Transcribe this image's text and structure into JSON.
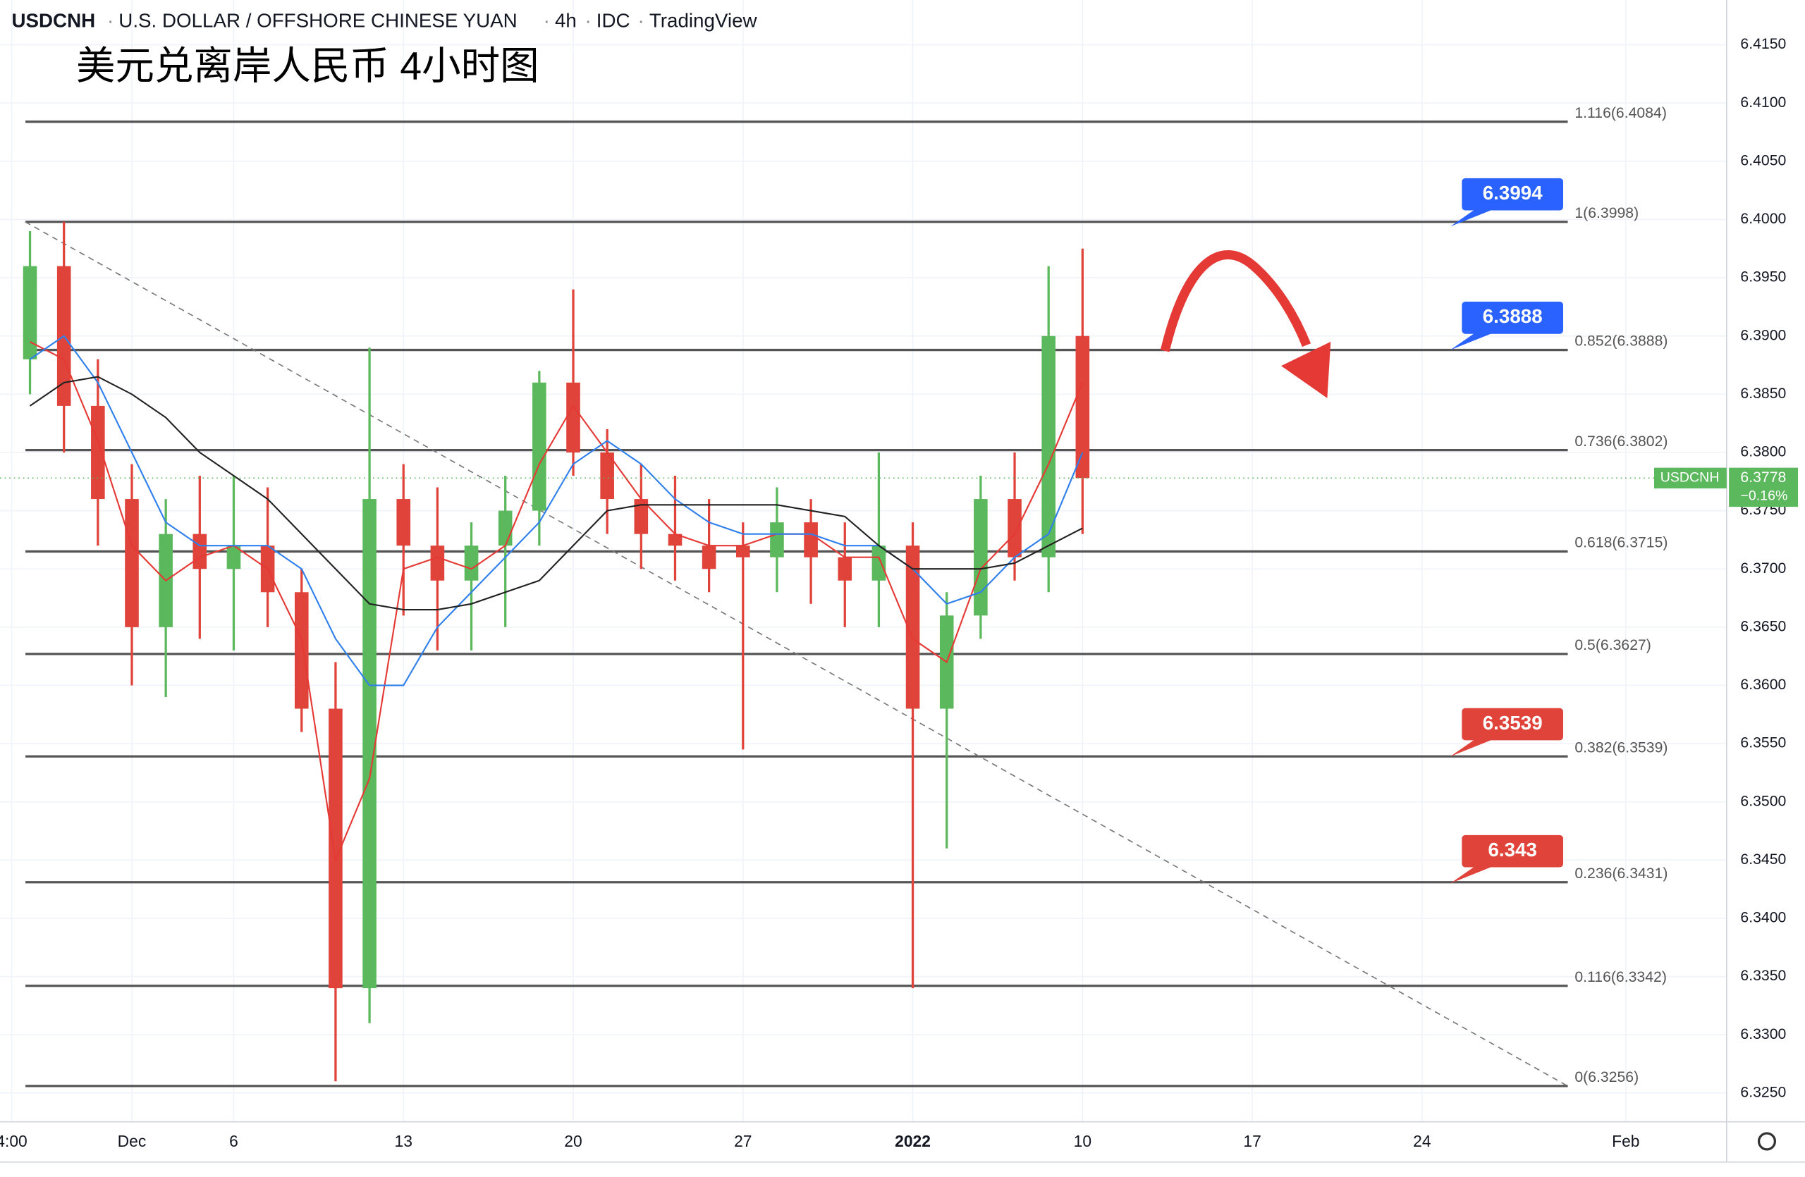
{
  "header": {
    "symbol": "USDCNH",
    "name": "U.S. DOLLAR / OFFSHORE CHINESE YUAN",
    "interval": "4h",
    "source": "IDC",
    "brand": "TradingView"
  },
  "chart_data": {
    "type": "candlestick",
    "title": "美元兑离岸人民币 4小时图",
    "ylim": [
      6.32253,
      6.41885
    ],
    "yticks": [
      {
        "value": 6.325,
        "label": "6.3250"
      },
      {
        "value": 6.33,
        "label": "6.3300"
      },
      {
        "value": 6.335,
        "label": "6.3350"
      },
      {
        "value": 6.34,
        "label": "6.3400"
      },
      {
        "value": 6.345,
        "label": "6.3450"
      },
      {
        "value": 6.35,
        "label": "6.3500"
      },
      {
        "value": 6.355,
        "label": "6.3550"
      },
      {
        "value": 6.36,
        "label": "6.3600"
      },
      {
        "value": 6.365,
        "label": "6.3650"
      },
      {
        "value": 6.37,
        "label": "6.3700"
      },
      {
        "value": 6.375,
        "label": "6.3750"
      },
      {
        "value": 6.38,
        "label": "6.3800"
      },
      {
        "value": 6.385,
        "label": "6.3850"
      },
      {
        "value": 6.39,
        "label": "6.3900"
      },
      {
        "value": 6.395,
        "label": "6.3950"
      },
      {
        "value": 6.4,
        "label": "6.4000"
      },
      {
        "value": 6.405,
        "label": "6.4050"
      },
      {
        "value": 6.41,
        "label": "6.4100"
      },
      {
        "value": 6.415,
        "label": "6.4150"
      }
    ],
    "xlim": [
      -6.88,
      43.97
    ],
    "xticks": [
      {
        "value": -6.54,
        "label": "4:00"
      },
      {
        "value": -3,
        "label": "Dec"
      },
      {
        "value": 0,
        "label": "6"
      },
      {
        "value": 5,
        "label": "13"
      },
      {
        "value": 10,
        "label": "20"
      },
      {
        "value": 15,
        "label": "27"
      },
      {
        "value": 20,
        "label": "2022"
      },
      {
        "value": 25,
        "label": "10"
      },
      {
        "value": 30,
        "label": "17"
      },
      {
        "value": 35,
        "label": "24"
      },
      {
        "value": 41,
        "label": "Feb"
      }
    ],
    "grid": true,
    "up_color": "#5cb85c",
    "down_color": "#e0433a",
    "candles": {
      "x": [
        -6,
        -5,
        -4,
        -3,
        -2,
        -1,
        0,
        1,
        2,
        3,
        4,
        5,
        6,
        7,
        8,
        9,
        10,
        11,
        12,
        13,
        14,
        15,
        16,
        17,
        18,
        19,
        20,
        21,
        22,
        23,
        24,
        25
      ],
      "open": [
        6.388,
        6.396,
        6.384,
        6.376,
        6.365,
        6.373,
        6.37,
        6.372,
        6.368,
        6.358,
        6.334,
        6.376,
        6.372,
        6.369,
        6.372,
        6.375,
        6.386,
        6.38,
        6.376,
        6.373,
        6.372,
        6.372,
        6.371,
        6.374,
        6.371,
        6.369,
        6.372,
        6.358,
        6.366,
        6.376,
        6.371,
        6.39
      ],
      "high": [
        6.399,
        6.3998,
        6.388,
        6.379,
        6.376,
        6.378,
        6.378,
        6.377,
        6.37,
        6.362,
        6.389,
        6.379,
        6.377,
        6.374,
        6.378,
        6.387,
        6.394,
        6.382,
        6.379,
        6.378,
        6.376,
        6.374,
        6.377,
        6.376,
        6.374,
        6.38,
        6.374,
        6.368,
        6.378,
        6.38,
        6.396,
        6.3975
      ],
      "low": [
        6.385,
        6.38,
        6.372,
        6.36,
        6.359,
        6.364,
        6.363,
        6.365,
        6.356,
        6.326,
        6.331,
        6.366,
        6.363,
        6.363,
        6.365,
        6.372,
        6.378,
        6.373,
        6.37,
        6.369,
        6.368,
        6.3545,
        6.368,
        6.367,
        6.365,
        6.365,
        6.334,
        6.346,
        6.364,
        6.369,
        6.368,
        6.373
      ],
      "close": [
        6.396,
        6.384,
        6.376,
        6.365,
        6.373,
        6.37,
        6.372,
        6.368,
        6.358,
        6.334,
        6.376,
        6.372,
        6.369,
        6.372,
        6.375,
        6.386,
        6.38,
        6.376,
        6.373,
        6.372,
        6.37,
        6.371,
        6.374,
        6.371,
        6.369,
        6.372,
        6.358,
        6.366,
        6.376,
        6.371,
        6.39,
        6.3778
      ]
    },
    "overlays": [
      {
        "color": "#e53935",
        "values": [
          6.3895,
          6.388,
          6.381,
          6.372,
          6.369,
          6.371,
          6.372,
          6.37,
          6.364,
          6.345,
          6.352,
          6.37,
          6.371,
          6.37,
          6.372,
          6.379,
          6.384,
          6.38,
          6.376,
          6.373,
          6.372,
          6.372,
          6.373,
          6.373,
          6.371,
          6.371,
          6.364,
          6.362,
          6.37,
          6.373,
          6.379,
          6.386
        ]
      },
      {
        "color": "#2f80ed",
        "values": [
          6.388,
          6.39,
          6.386,
          6.38,
          6.374,
          6.372,
          6.372,
          6.372,
          6.37,
          6.364,
          6.36,
          6.36,
          6.365,
          6.368,
          6.371,
          6.374,
          6.379,
          6.381,
          6.379,
          6.376,
          6.374,
          6.373,
          6.373,
          6.373,
          6.372,
          6.372,
          6.37,
          6.367,
          6.368,
          6.371,
          6.373,
          6.38
        ]
      },
      {
        "color": "#222222",
        "values": [
          6.384,
          6.386,
          6.3865,
          6.385,
          6.383,
          6.38,
          6.378,
          6.376,
          6.373,
          6.37,
          6.367,
          6.3665,
          6.3665,
          6.367,
          6.368,
          6.369,
          6.372,
          6.375,
          6.3755,
          6.3755,
          6.3755,
          6.3755,
          6.3755,
          6.375,
          6.3745,
          6.372,
          6.37,
          6.37,
          6.37,
          6.3705,
          6.372,
          6.3735
        ]
      }
    ],
    "fib_levels": [
      {
        "value": 6.4084,
        "label": "1.116(6.4084)"
      },
      {
        "value": 6.3998,
        "label": "1(6.3998)"
      },
      {
        "value": 6.3888,
        "label": "0.852(6.3888)"
      },
      {
        "value": 6.3802,
        "label": "0.736(6.3802)"
      },
      {
        "value": 6.3715,
        "label": "0.618(6.3715)"
      },
      {
        "value": 6.3627,
        "label": "0.5(6.3627)"
      },
      {
        "value": 6.3539,
        "label": "0.382(6.3539)"
      },
      {
        "value": 6.3431,
        "label": "0.236(6.3431)"
      },
      {
        "value": 6.3342,
        "label": "0.116(6.3342)"
      },
      {
        "value": 6.3256,
        "label": "0(6.3256)"
      }
    ],
    "trendline": {
      "x": [
        -6.14,
        39.29
      ],
      "y": [
        6.3998,
        6.3256
      ]
    },
    "callouts": [
      {
        "value": 6.3994,
        "color": "#2962ff"
      },
      {
        "value": 6.3888,
        "color": "#2962ff"
      },
      {
        "value": 6.3539,
        "color": "#e0433a"
      },
      {
        "value": 6.343,
        "color": "#e0433a"
      }
    ],
    "last_price": {
      "symbol": "USDCNH",
      "value": 6.3778,
      "change": {
        "value": -0.16,
        "label": "−0.16%"
      }
    }
  }
}
